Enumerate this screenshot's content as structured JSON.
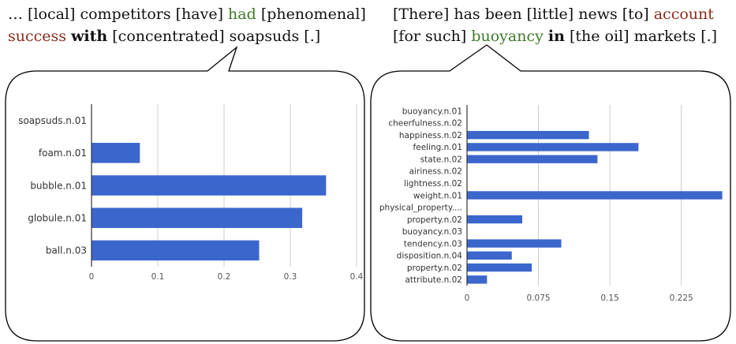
{
  "left_caption": {
    "line1": [
      {
        "text": "… [local] competitors [have] ",
        "style": "plain"
      },
      {
        "text": "had",
        "style": "green"
      },
      {
        "text": " [phenomenal]",
        "style": "plain"
      }
    ],
    "line2": [
      {
        "text": "success",
        "style": "red"
      },
      {
        "text": " ",
        "style": "plain"
      },
      {
        "text": "with",
        "style": "bold"
      },
      {
        "text": " [concentrated] soapsuds [.]",
        "style": "plain"
      }
    ]
  },
  "right_caption": {
    "line1": [
      {
        "text": "[There] has been [little] news [to] ",
        "style": "plain"
      },
      {
        "text": "account",
        "style": "red"
      }
    ],
    "line2": [
      {
        "text": "[for such] ",
        "style": "plain"
      },
      {
        "text": "buoyancy",
        "style": "green"
      },
      {
        "text": " ",
        "style": "plain"
      },
      {
        "text": "in",
        "style": "bold"
      },
      {
        "text": " [the oil] markets [.]",
        "style": "plain"
      }
    ]
  },
  "colors": {
    "bar": "#3b66cc",
    "grid": "#cccccc",
    "axis": "#333333",
    "green": "#3d7a28",
    "red": "#8b2a1a"
  },
  "chart_data": [
    {
      "type": "bar",
      "orientation": "horizontal",
      "categories": [
        "soapsuds.n.01",
        "foam.n.01",
        "bubble.n.01",
        "globule.n.01",
        "ball.n.03"
      ],
      "values": [
        0,
        0.073,
        0.354,
        0.318,
        0.253
      ],
      "xlim": [
        0,
        0.4
      ],
      "xticks": [
        "0",
        "0.1",
        "0.2",
        "0.3",
        "0.4"
      ],
      "grid": true
    },
    {
      "type": "bar",
      "orientation": "horizontal",
      "categories": [
        "buoyancy.n.01",
        "cheerfulness.n.02",
        "happiness.n.02",
        "feeling.n.01",
        "state.n.02",
        "airiness.n.02",
        "lightness.n.02",
        "weight.n.01",
        "physical_property....",
        "property.n.02",
        "buoyancy.n.03",
        "tendency.n.03",
        "disposition.n.04",
        "property.n.02",
        "attribute.n.02"
      ],
      "values": [
        0,
        0,
        0.128,
        0.18,
        0.137,
        0,
        0,
        0.268,
        0,
        0.058,
        0,
        0.099,
        0.047,
        0.068,
        0.021
      ],
      "xlim": [
        0,
        0.27
      ],
      "xticks": [
        "0",
        "0.075",
        "0.15",
        "0.225"
      ],
      "grid": true
    }
  ]
}
